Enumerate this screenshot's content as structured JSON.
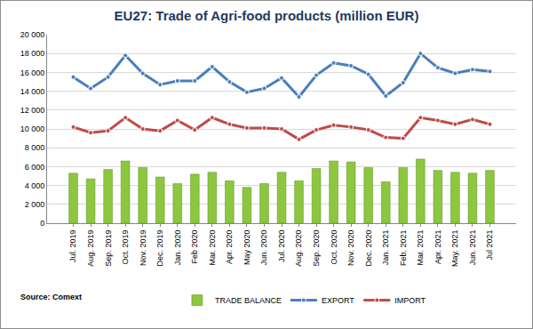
{
  "chart_data": {
    "type": "bar",
    "title": "EU27: Trade of Agri-food products (million EUR)",
    "annotations": [
      "Source: Comext"
    ],
    "categories": [
      "Jul. 2019",
      "Aug. 2019",
      "Sep. 2019",
      "Oct. 2019",
      "Nov. 2019",
      "Dec. 2019",
      "Jan. 2020",
      "Feb 2020",
      "Mar. 2020",
      "Apr. 2020",
      "May 2020",
      "Jun. 2020",
      "Jul. 2020",
      "Aug. 2020",
      "Sep. 2020",
      "Oct. 2020",
      "Nov. 2020",
      "Dec. 2020",
      "Jan. 2021",
      "Feb. 2021",
      "Mar. 2021",
      "Apr. 2021",
      "May. 2021",
      "Jun. 2021",
      "Jul 2021"
    ],
    "series": [
      {
        "name": "TRADE BALANCE",
        "type": "bar",
        "color": "#8dc63f",
        "values": [
          5300,
          4700,
          5700,
          6600,
          5900,
          4900,
          4200,
          5200,
          5400,
          4500,
          3800,
          4200,
          5400,
          4500,
          5800,
          6600,
          6500,
          5900,
          4400,
          5900,
          6800,
          5600,
          5400,
          5300,
          5600
        ]
      },
      {
        "name": "EXPORT",
        "type": "line",
        "color": "#4a7ebb",
        "marker": "circle",
        "values": [
          15500,
          14300,
          15500,
          17800,
          15900,
          14700,
          15100,
          15100,
          16600,
          15000,
          13900,
          14300,
          15400,
          13400,
          15700,
          17000,
          16700,
          15800,
          13500,
          14900,
          18000,
          16500,
          15900,
          16300,
          16100
        ]
      },
      {
        "name": "IMPORT",
        "type": "line",
        "color": "#be4b48",
        "marker": "circle",
        "values": [
          10200,
          9600,
          9800,
          11200,
          10000,
          9800,
          10900,
          9900,
          11200,
          10500,
          10100,
          10100,
          10000,
          8900,
          9900,
          10400,
          10200,
          9900,
          9100,
          9000,
          11200,
          10900,
          10500,
          11000,
          10500
        ]
      }
    ],
    "ylim": [
      0,
      20000
    ],
    "yticks": [
      0,
      {
        "value": 2000,
        "label": "2 000"
      },
      {
        "value": 4000,
        "label": "4 000"
      },
      {
        "value": 6000,
        "label": "6 000"
      },
      {
        "value": 8000,
        "label": "8 000"
      },
      {
        "value": 10000,
        "label": "10 000"
      },
      {
        "value": 12000,
        "label": "12 000"
      },
      {
        "value": 14000,
        "label": "14 000"
      },
      {
        "value": 16000,
        "label": "16 000"
      },
      {
        "value": 18000,
        "label": "18 000"
      },
      {
        "value": 20000,
        "label": "20 000"
      }
    ],
    "grid": true,
    "legend": "bottom"
  }
}
